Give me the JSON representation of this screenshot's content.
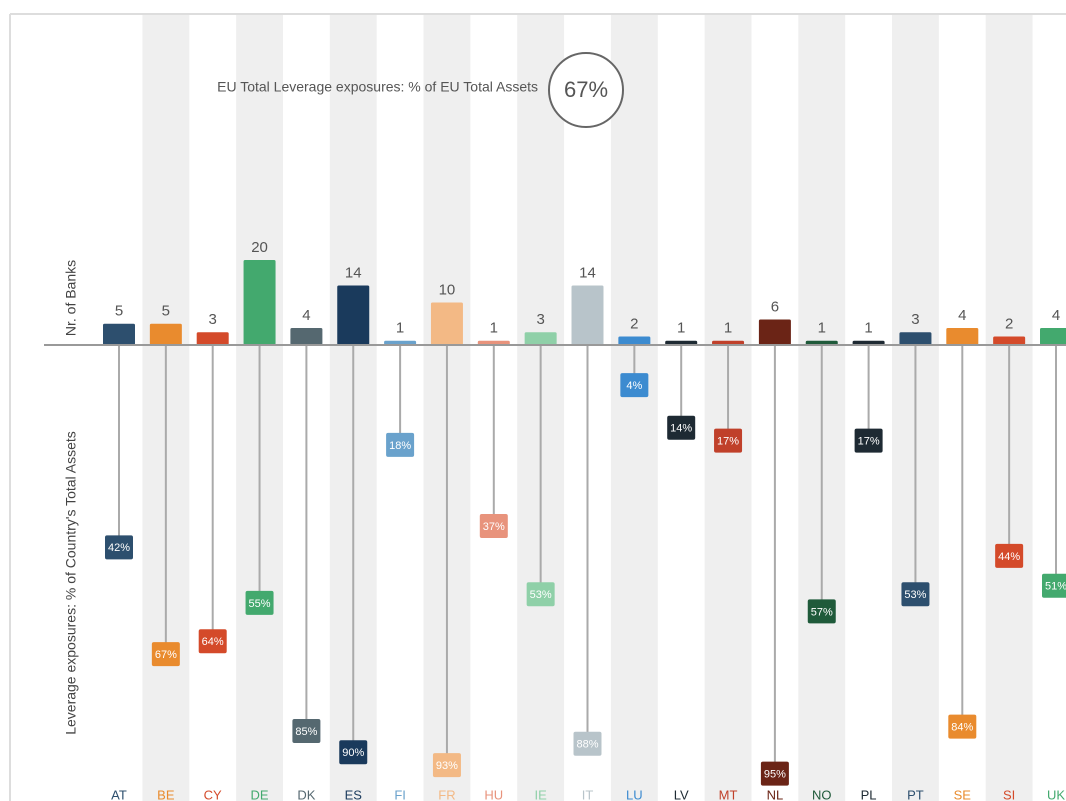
{
  "chart_data": [
    {
      "type": "bar",
      "title": "EU Total Leverage exposures: % of EU Total Assets",
      "total": {
        "value": 67,
        "label": "67%"
      },
      "ylabel": "Nr. of Banks",
      "categories": [
        "AT",
        "BE",
        "CY",
        "DE",
        "DK",
        "ES",
        "FI",
        "FR",
        "HU",
        "IE",
        "IT",
        "LU",
        "LV",
        "MT",
        "NL",
        "NO",
        "PL",
        "PT",
        "SE",
        "SI",
        "UK"
      ],
      "colors": [
        "#2d4f6e",
        "#e98b2e",
        "#d44a2a",
        "#43a96e",
        "#556870",
        "#1a3a5c",
        "#6aa2cc",
        "#f3b985",
        "#e8937c",
        "#8fd0a8",
        "#b8c4ca",
        "#3c8bd0",
        "#1e2a33",
        "#c0402a",
        "#6b2416",
        "#1f5a3a",
        "#1e2a33",
        "#2d4f6e",
        "#e98b2e",
        "#d44a2a",
        "#43a96e"
      ],
      "values": [
        5,
        5,
        3,
        20,
        4,
        14,
        1,
        10,
        1,
        3,
        14,
        2,
        1,
        1,
        6,
        1,
        1,
        3,
        4,
        2,
        4
      ]
    },
    {
      "type": "lollipop",
      "ylabel": "Leverage exposures: % of Country's Total Assets",
      "values": [
        42,
        67,
        64,
        55,
        85,
        90,
        18,
        93,
        37,
        53,
        88,
        4,
        14,
        17,
        95,
        57,
        17,
        53,
        84,
        44,
        51
      ],
      "value_labels": [
        "42%",
        "67%",
        "64%",
        "55%",
        "85%",
        "90%",
        "18%",
        "93%",
        "37%",
        "53%",
        "88%",
        "4%",
        "14%",
        "17%",
        "95%",
        "57%",
        "17%",
        "53%",
        "84%",
        "44%",
        "51%"
      ]
    }
  ]
}
